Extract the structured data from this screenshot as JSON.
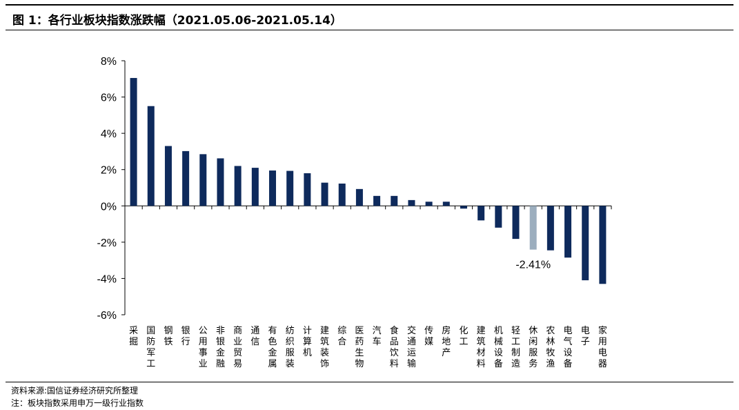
{
  "figure": {
    "title": "图 1：各行业板块指数涨跌幅（2021.05.06-2021.05.14）",
    "source": "资料来源:国信证券经济研究所整理",
    "note": "注：板块指数采用申万一级行业指数"
  },
  "chart_data": {
    "type": "bar",
    "title": "",
    "xlabel": "",
    "ylabel": "",
    "ylim": [
      -6,
      8
    ],
    "yticks": [
      8,
      6,
      4,
      2,
      0,
      -2,
      -4,
      -6
    ],
    "ytick_labels": [
      "8%",
      "6%",
      "4%",
      "2%",
      "0%",
      "-2%",
      "-4%",
      "-6%"
    ],
    "grid": false,
    "legend": "none",
    "categories": [
      "采掘",
      "国防军工",
      "钢铁",
      "银行",
      "公用事业",
      "非银金融",
      "商业贸易",
      "通信",
      "有色金属",
      "纺织服装",
      "计算机",
      "建筑装饰",
      "综合",
      "医药生物",
      "汽车",
      "食品饮料",
      "交通运输",
      "传媒",
      "房地产",
      "化工",
      "建筑材料",
      "机械设备",
      "轻工制造",
      "休闲服务",
      "农林牧渔",
      "电气设备",
      "电子",
      "家用电器"
    ],
    "values": [
      7.05,
      5.5,
      3.3,
      3.02,
      2.85,
      2.62,
      2.2,
      2.1,
      1.95,
      1.93,
      1.8,
      1.28,
      1.23,
      0.93,
      0.55,
      0.55,
      0.32,
      0.23,
      0.23,
      -0.15,
      -0.8,
      -1.2,
      -1.82,
      -2.41,
      -2.45,
      -2.85,
      -4.1,
      -4.3
    ],
    "highlight_category": "休闲服务",
    "annotation": {
      "category": "休闲服务",
      "text": "-2.41%"
    },
    "colors": {
      "bar": "#0e2a5c",
      "highlight": "#9caebe",
      "axis": "#000000"
    }
  }
}
